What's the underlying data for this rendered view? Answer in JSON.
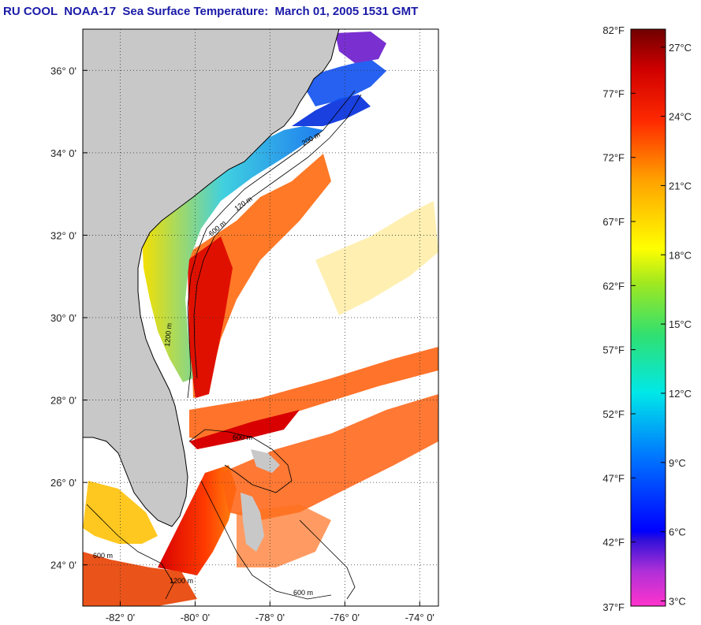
{
  "title": "RU COOL  NOAA-17  Sea Surface Temperature:  March 01, 2005 1531 GMT",
  "map": {
    "lat_range": [
      23,
      37
    ],
    "lon_range": [
      -83,
      -73.5
    ],
    "lat_ticks": [
      {
        "value": 24,
        "label": "24° 0'"
      },
      {
        "value": 26,
        "label": "26° 0'"
      },
      {
        "value": 28,
        "label": "28° 0'"
      },
      {
        "value": 30,
        "label": "30° 0'"
      },
      {
        "value": 32,
        "label": "32° 0'"
      },
      {
        "value": 34,
        "label": "34° 0'"
      },
      {
        "value": 36,
        "label": "36° 0'"
      }
    ],
    "lon_ticks": [
      {
        "value": -82,
        "label": "-82° 0'"
      },
      {
        "value": -80,
        "label": "-80° 0'"
      },
      {
        "value": -78,
        "label": "-78° 0'"
      },
      {
        "value": -76,
        "label": "-76° 0'"
      },
      {
        "value": -74,
        "label": "-74° 0'"
      }
    ],
    "contour_labels": [
      "200 m",
      "120 m",
      "600 m",
      "1200 m",
      "600 m",
      "600 m",
      "1200 m",
      "600 m"
    ],
    "land_color": "#c8c8c8",
    "grid": "dotted"
  },
  "colorbar": {
    "fahrenheit_labels": [
      "82°F",
      "77°F",
      "72°F",
      "67°F",
      "62°F",
      "57°F",
      "52°F",
      "47°F",
      "42°F",
      "37°F"
    ],
    "celsius_labels": [
      "27°C",
      "24°C",
      "21°C",
      "18°C",
      "15°C",
      "12°C",
      "9°C",
      "6°C",
      "3°C"
    ],
    "f_range": [
      37,
      82
    ],
    "c_values": [
      27,
      24,
      21,
      18,
      15,
      12,
      9,
      6,
      3
    ]
  }
}
